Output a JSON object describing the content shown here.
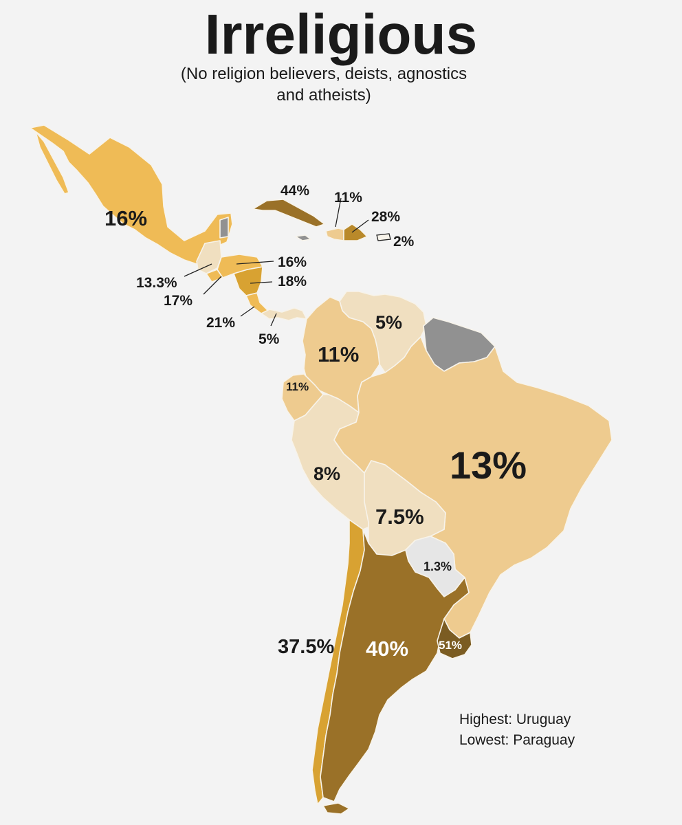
{
  "header": {
    "title": "Irreligious",
    "subtitle_line1": "(No religion believers, deists, agnostics",
    "subtitle_line2": "and atheists)"
  },
  "colors": {
    "no_data": "#919191",
    "lightest": "#e6e6e6",
    "pale": "#f0dfc0",
    "light": "#eecb8f",
    "medium": "#efbb56",
    "mid_gold": "#d8a232",
    "dark_gold": "#b9892a",
    "darker": "#9a7128",
    "darkest": "#7b5c22"
  },
  "countries": [
    {
      "name": "Mexico",
      "label": "16%",
      "value": 16
    },
    {
      "name": "Cuba",
      "label": "44%",
      "value": 44
    },
    {
      "name": "Haiti",
      "label": "11%",
      "value": 11
    },
    {
      "name": "Dominican Republic",
      "label": "28%",
      "value": 28
    },
    {
      "name": "Puerto Rico",
      "label": "2%",
      "value": 2
    },
    {
      "name": "Guatemala",
      "label": "13.3%",
      "value": 13.3
    },
    {
      "name": "Honduras",
      "label": "16%",
      "value": 16
    },
    {
      "name": "El Salvador",
      "label": "17%",
      "value": 17
    },
    {
      "name": "Nicaragua",
      "label": "18%",
      "value": 18
    },
    {
      "name": "Costa Rica",
      "label": "21%",
      "value": 21
    },
    {
      "name": "Panama",
      "label": "5%",
      "value": 5
    },
    {
      "name": "Venezuela",
      "label": "5%",
      "value": 5
    },
    {
      "name": "Colombia",
      "label": "11%",
      "value": 11
    },
    {
      "name": "Ecuador",
      "label": "11%",
      "value": 11
    },
    {
      "name": "Peru",
      "label": "8%",
      "value": 8
    },
    {
      "name": "Brazil",
      "label": "13%",
      "value": 13
    },
    {
      "name": "Bolivia",
      "label": "7.5%",
      "value": 7.5
    },
    {
      "name": "Paraguay",
      "label": "1.3%",
      "value": 1.3
    },
    {
      "name": "Chile",
      "label": "37.5%",
      "value": 37.5
    },
    {
      "name": "Argentina",
      "label": "40%",
      "value": 40
    },
    {
      "name": "Uruguay",
      "label": "51%",
      "value": 51
    }
  ],
  "legend": {
    "highest": "Highest: Uruguay",
    "lowest": "Lowest: Paraguay"
  }
}
